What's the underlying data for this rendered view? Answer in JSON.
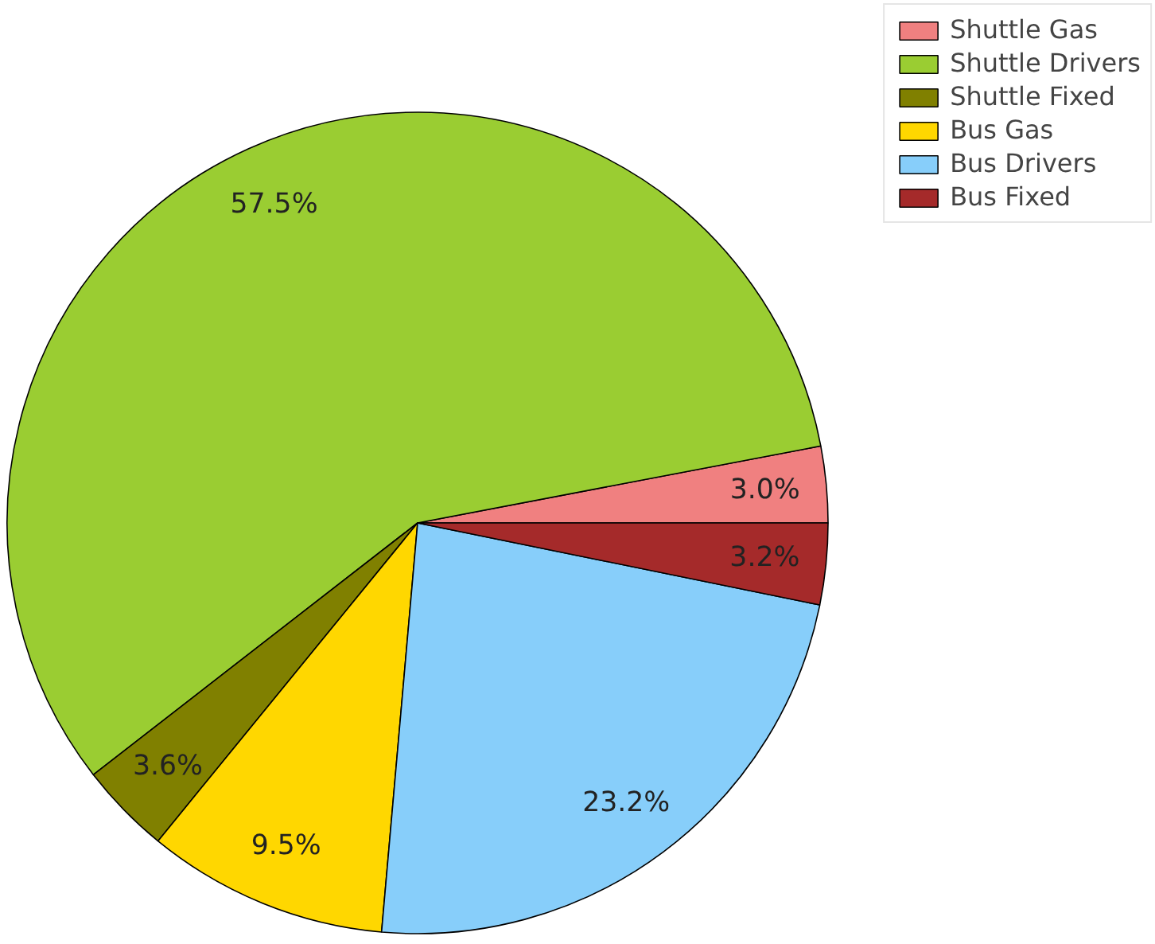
{
  "chart_data": {
    "type": "pie",
    "categories": [
      "Shuttle Gas",
      "Shuttle Drivers",
      "Shuttle Fixed",
      "Bus Gas",
      "Bus Drivers",
      "Bus Fixed"
    ],
    "values": [
      3.0,
      57.5,
      3.6,
      9.5,
      23.2,
      3.2
    ],
    "colors": [
      "#f08080",
      "#9acd32",
      "#808000",
      "#ffd700",
      "#87cefa",
      "#a52a2a"
    ],
    "value_labels": [
      "3.0%",
      "57.5%",
      "3.6%",
      "9.5%",
      "23.2%",
      "3.2%"
    ],
    "legend": "top right"
  }
}
